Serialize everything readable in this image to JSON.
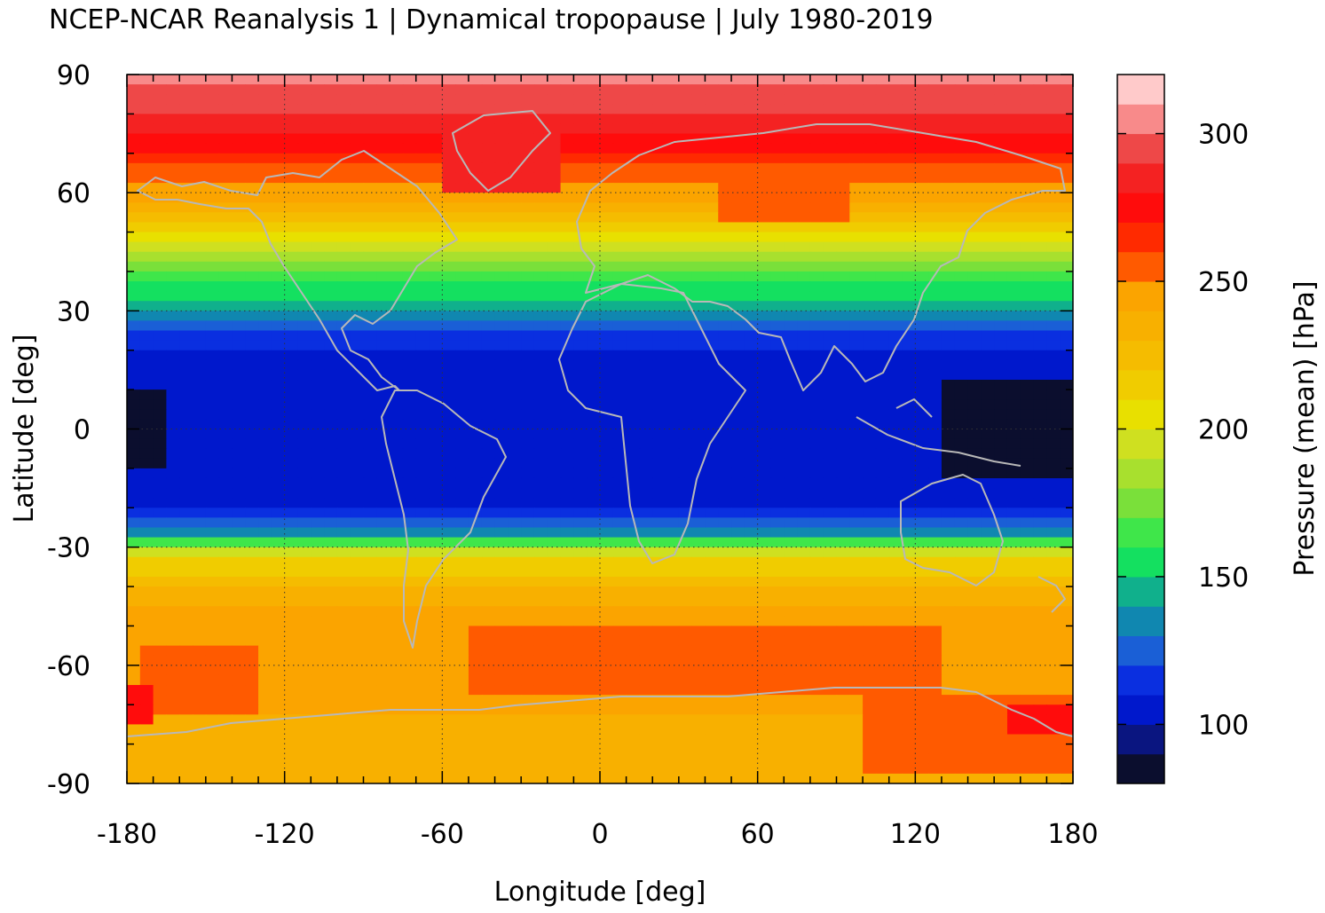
{
  "chart_data": {
    "type": "heatmap",
    "title": "NCEP-NCAR Reanalysis 1 | Dynamical tropopause | July 1980-2019",
    "xlabel": "Longitude [deg]",
    "ylabel": "Latitude [deg]",
    "xlim": [
      -180,
      180
    ],
    "ylim": [
      -90,
      90
    ],
    "x_ticks": [
      "-180",
      "-120",
      "-60",
      "0",
      "60",
      "120",
      "180"
    ],
    "y_ticks": [
      "90",
      "60",
      "30",
      "0",
      "-30",
      "-60",
      "-90"
    ],
    "grid": true,
    "overlay": "coastlines",
    "colorbar": {
      "label": "Pressure (mean) [hPa]",
      "range": [
        80,
        320
      ],
      "ticks": [
        "100",
        "150",
        "200",
        "250",
        "300"
      ],
      "levels": [
        {
          "from": 80,
          "to": 90,
          "color": "#0b0e2e"
        },
        {
          "from": 90,
          "to": 100,
          "color": "#0a1580"
        },
        {
          "from": 100,
          "to": 110,
          "color": "#0018cc"
        },
        {
          "from": 110,
          "to": 120,
          "color": "#0a2fe0"
        },
        {
          "from": 120,
          "to": 130,
          "color": "#1a5fd6"
        },
        {
          "from": 130,
          "to": 140,
          "color": "#1087b0"
        },
        {
          "from": 140,
          "to": 150,
          "color": "#10b08c"
        },
        {
          "from": 150,
          "to": 160,
          "color": "#14e060"
        },
        {
          "from": 160,
          "to": 170,
          "color": "#3fe64a"
        },
        {
          "from": 170,
          "to": 180,
          "color": "#7ae03a"
        },
        {
          "from": 180,
          "to": 190,
          "color": "#a8e02e"
        },
        {
          "from": 190,
          "to": 200,
          "color": "#cfe020"
        },
        {
          "from": 200,
          "to": 210,
          "color": "#e8e000"
        },
        {
          "from": 210,
          "to": 220,
          "color": "#f0cc00"
        },
        {
          "from": 220,
          "to": 230,
          "color": "#f5bc00"
        },
        {
          "from": 230,
          "to": 240,
          "color": "#f8b000"
        },
        {
          "from": 240,
          "to": 250,
          "color": "#fba400"
        },
        {
          "from": 250,
          "to": 260,
          "color": "#ff5a00"
        },
        {
          "from": 260,
          "to": 270,
          "color": "#ff2a00"
        },
        {
          "from": 270,
          "to": 280,
          "color": "#ff0c0c"
        },
        {
          "from": 280,
          "to": 290,
          "color": "#f42222"
        },
        {
          "from": 290,
          "to": 300,
          "color": "#ee4848"
        },
        {
          "from": 300,
          "to": 310,
          "color": "#f88a8a"
        },
        {
          "from": 310,
          "to": 320,
          "color": "#ffcaca"
        }
      ]
    },
    "zonal_mean_profile": [
      {
        "lat": 90,
        "pressure": 303
      },
      {
        "lat": 83,
        "pressure": 296
      },
      {
        "lat": 78,
        "pressure": 285
      },
      {
        "lat": 72,
        "pressure": 272
      },
      {
        "lat": 66,
        "pressure": 258
      },
      {
        "lat": 61,
        "pressure": 248
      },
      {
        "lat": 56,
        "pressure": 235
      },
      {
        "lat": 51,
        "pressure": 215
      },
      {
        "lat": 46,
        "pressure": 192
      },
      {
        "lat": 41,
        "pressure": 170
      },
      {
        "lat": 36,
        "pressure": 158
      },
      {
        "lat": 31,
        "pressure": 145
      },
      {
        "lat": 26,
        "pressure": 125
      },
      {
        "lat": 21,
        "pressure": 113
      },
      {
        "lat": 15,
        "pressure": 104
      },
      {
        "lat": 0,
        "pressure": 102
      },
      {
        "lat": -15,
        "pressure": 104
      },
      {
        "lat": -21,
        "pressure": 112
      },
      {
        "lat": -25,
        "pressure": 125
      },
      {
        "lat": -27,
        "pressure": 145
      },
      {
        "lat": -29,
        "pressure": 168
      },
      {
        "lat": -31,
        "pressure": 192
      },
      {
        "lat": -34,
        "pressure": 212
      },
      {
        "lat": -38,
        "pressure": 225
      },
      {
        "lat": -43,
        "pressure": 235
      },
      {
        "lat": -48,
        "pressure": 243
      },
      {
        "lat": -55,
        "pressure": 248
      },
      {
        "lat": -62,
        "pressure": 250
      },
      {
        "lat": -68,
        "pressure": 245
      },
      {
        "lat": -74,
        "pressure": 238
      },
      {
        "lat": -80,
        "pressure": 236
      },
      {
        "lat": -90,
        "pressure": 238
      }
    ],
    "regional_features": [
      {
        "lon_range": [
          -180,
          -165
        ],
        "lat_range": [
          -10,
          10
        ],
        "pressure": 88
      },
      {
        "lon_range": [
          130,
          180
        ],
        "lat_range": [
          -12,
          12
        ],
        "pressure": 88
      },
      {
        "lon_range": [
          -60,
          -15
        ],
        "lat_range": [
          60,
          80
        ],
        "pressure": 285
      },
      {
        "lon_range": [
          70,
          105
        ],
        "lat_range": [
          -63,
          -53
        ],
        "pressure": 265
      },
      {
        "lon_range": [
          -50,
          130
        ],
        "lat_range": [
          -68,
          -50
        ],
        "pressure": 255
      },
      {
        "lon_range": [
          -175,
          -130
        ],
        "lat_range": [
          -72,
          -55
        ],
        "pressure": 255
      },
      {
        "lon_range": [
          100,
          180
        ],
        "lat_range": [
          -88,
          -68
        ],
        "pressure": 255
      },
      {
        "lon_range": [
          155,
          180
        ],
        "lat_range": [
          -78,
          -70
        ],
        "pressure": 275
      },
      {
        "lon_range": [
          -180,
          -172
        ],
        "lat_range": [
          -76,
          -66
        ],
        "pressure": 275
      },
      {
        "lon_range": [
          45,
          95
        ],
        "lat_range": [
          52,
          64
        ],
        "pressure": 255
      }
    ]
  }
}
